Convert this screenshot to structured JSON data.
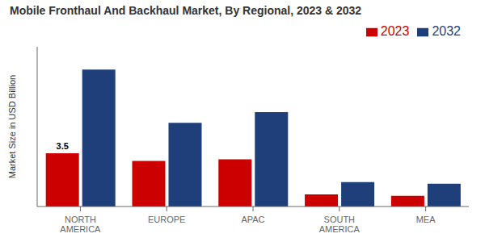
{
  "chart_data": {
    "type": "bar",
    "title": "Mobile Fronthaul And Backhaul Market, By Regional, 2023 & 2032",
    "ylabel": "Market Size in USD Billion",
    "categories": [
      "NORTH\nAMERICA",
      "EUROPE",
      "APAC",
      "SOUTH\nAMERICA",
      "MEA"
    ],
    "series": [
      {
        "name": "2023",
        "color": "#cc0000",
        "values": [
          3.5,
          3.0,
          3.1,
          0.8,
          0.7
        ]
      },
      {
        "name": "2032",
        "color": "#1f3f7a",
        "values": [
          9.0,
          5.5,
          6.2,
          1.6,
          1.5
        ]
      }
    ],
    "annotations": [
      {
        "text": "3.5",
        "series": "2023",
        "category": "NORTH\nAMERICA"
      }
    ],
    "ylim": [
      0,
      10.5
    ],
    "grid": false,
    "legend": "upper right",
    "tick_labels": "x"
  }
}
